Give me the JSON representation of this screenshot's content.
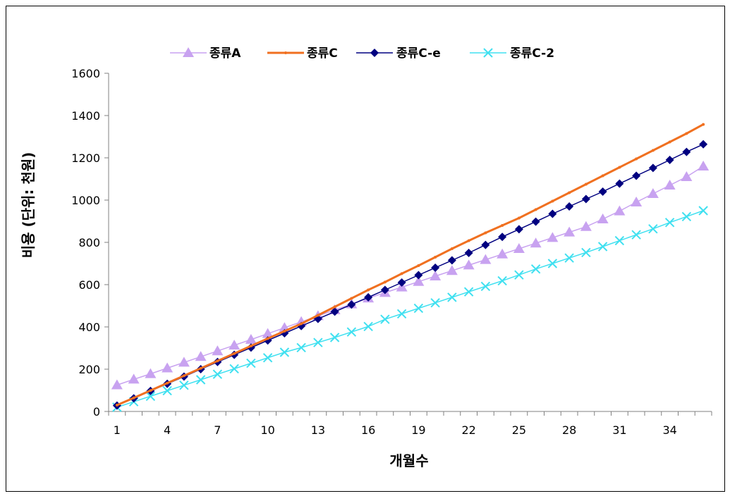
{
  "chart_data": {
    "type": "line",
    "xlabel": "개월수",
    "ylabel": "비용 (단위: 천원)",
    "ylim": [
      0,
      1600
    ],
    "yticks": [
      0,
      200,
      400,
      600,
      800,
      1000,
      1200,
      1400,
      1600
    ],
    "xticks": [
      1,
      4,
      7,
      10,
      13,
      16,
      19,
      22,
      25,
      28,
      31,
      34
    ],
    "xrange": [
      1,
      36
    ],
    "grid": false,
    "legend_position": "top",
    "x": [
      1,
      2,
      3,
      4,
      5,
      6,
      7,
      8,
      9,
      10,
      11,
      12,
      13,
      14,
      15,
      16,
      17,
      18,
      19,
      20,
      21,
      22,
      23,
      24,
      25,
      26,
      27,
      28,
      29,
      30,
      31,
      32,
      33,
      34,
      35,
      36
    ],
    "series": [
      {
        "name": "종류A",
        "color": "#c8a2f0",
        "marker": "triangle",
        "values": [
          125,
          152,
          178,
          205,
          232,
          259,
          286,
          313,
          340,
          368,
          396,
          424,
          452,
          480,
          508,
          536,
          562,
          588,
          614,
          640,
          666,
          692,
          718,
          744,
          770,
          796,
          822,
          848,
          874,
          910,
          948,
          990,
          1030,
          1070,
          1110,
          1160
        ]
      },
      {
        "name": "종류C",
        "color": "#f07020",
        "marker": "small-dot",
        "values": [
          30,
          64,
          99,
          134,
          169,
          204,
          239,
          274,
          310,
          345,
          380,
          415,
          455,
          495,
          535,
          575,
          612,
          652,
          690,
          730,
          770,
          808,
          845,
          880,
          915,
          955,
          995,
          1035,
          1075,
          1115,
          1155,
          1195,
          1235,
          1275,
          1315,
          1358
        ]
      },
      {
        "name": "종류C-e",
        "color": "#000080",
        "marker": "diamond",
        "values": [
          28,
          62,
          97,
          131,
          165,
          200,
          234,
          268,
          302,
          336,
          370,
          404,
          438,
          472,
          506,
          540,
          575,
          610,
          645,
          680,
          715,
          750,
          788,
          826,
          862,
          898,
          935,
          970,
          1005,
          1040,
          1078,
          1115,
          1152,
          1190,
          1228,
          1264
        ]
      },
      {
        "name": "종류C-2",
        "color": "#40e0f0",
        "marker": "x",
        "values": [
          20,
          46,
          72,
          98,
          124,
          150,
          176,
          202,
          228,
          254,
          280,
          302,
          326,
          350,
          376,
          402,
          436,
          462,
          488,
          514,
          540,
          566,
          592,
          618,
          646,
          674,
          700,
          726,
          752,
          780,
          808,
          836,
          864,
          894,
          922,
          950
        ]
      }
    ]
  }
}
